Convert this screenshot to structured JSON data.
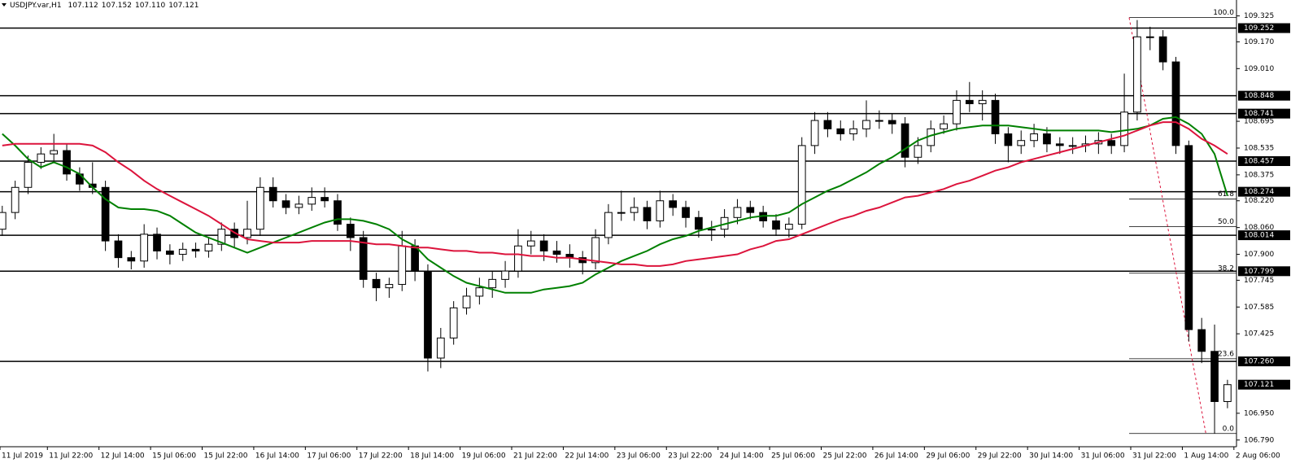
{
  "chart_data": {
    "type": "candlestick",
    "symbol": "USDJPY.var,H1",
    "header_ohlc": [
      107.112,
      107.152,
      {
        "value": 107.11,
        "label": "107.110"
      },
      107.121
    ],
    "x": [
      2,
      6,
      10,
      14,
      18,
      22,
      26,
      30,
      34,
      38,
      42,
      46,
      50,
      54,
      58,
      62,
      66,
      70,
      74,
      78,
      82,
      86,
      90,
      94,
      98,
      102,
      106,
      110,
      114,
      118,
      122,
      126,
      130,
      134,
      138,
      142,
      146,
      150,
      154,
      158,
      162,
      166,
      170,
      174,
      178,
      182,
      186,
      190,
      194,
      198,
      202,
      206,
      210,
      214,
      218,
      222,
      226,
      230,
      234,
      238,
      242,
      246,
      250,
      254,
      258,
      262,
      266,
      270,
      274,
      278,
      282,
      286,
      290,
      294,
      298,
      302,
      306,
      310,
      314,
      318,
      322,
      326,
      330,
      334,
      338,
      342,
      346,
      350,
      354,
      358,
      362,
      366,
      370,
      374,
      378,
      382
    ],
    "open": [
      108.05,
      108.15,
      108.3,
      108.45,
      108.5,
      108.52,
      108.38,
      108.32,
      108.3,
      107.98,
      107.88,
      107.86,
      108.02,
      107.92,
      107.9,
      107.93,
      107.92,
      107.96,
      108.05,
      108.0,
      108.05,
      108.3,
      108.22,
      108.18,
      108.2,
      108.24,
      108.22,
      108.08,
      108.0,
      107.75,
      107.7,
      107.72,
      107.95,
      107.8,
      107.28,
      107.4,
      107.58,
      107.65,
      107.7,
      107.75,
      107.8,
      107.95,
      107.98,
      107.92,
      107.9,
      107.88,
      107.85,
      108.0,
      108.15,
      108.15,
      108.18,
      108.1,
      108.22,
      108.18,
      108.12,
      108.05,
      108.05,
      108.12,
      108.18,
      108.15,
      108.1,
      108.05,
      108.08,
      108.55,
      108.7,
      108.65,
      108.62,
      108.65,
      108.7,
      108.7,
      108.68,
      108.48,
      108.55,
      108.65,
      108.68,
      108.82,
      108.8,
      108.82,
      108.62,
      108.55,
      108.58,
      108.62,
      108.56,
      108.55,
      108.55,
      108.56,
      108.58,
      108.55,
      108.75,
      109.2,
      109.2,
      109.05,
      108.55,
      107.45,
      107.32,
      107.02
    ],
    "high": [
      108.19,
      108.34,
      108.49,
      108.54,
      108.62,
      108.56,
      108.42,
      108.45,
      108.34,
      108.02,
      107.92,
      108.08,
      108.06,
      107.96,
      107.97,
      107.97,
      108.0,
      108.09,
      108.09,
      108.22,
      108.36,
      108.36,
      108.26,
      108.25,
      108.3,
      108.3,
      108.26,
      108.12,
      108.04,
      107.79,
      107.76,
      108.04,
      107.99,
      107.84,
      107.46,
      107.62,
      107.7,
      107.76,
      107.8,
      107.86,
      108.05,
      108.04,
      108.02,
      107.98,
      107.96,
      107.92,
      108.05,
      108.2,
      108.28,
      108.24,
      108.22,
      108.28,
      108.26,
      108.22,
      108.16,
      108.1,
      108.17,
      108.23,
      108.22,
      108.19,
      108.14,
      108.12,
      108.6,
      108.75,
      108.75,
      108.7,
      108.7,
      108.82,
      108.76,
      108.74,
      108.72,
      108.6,
      108.7,
      108.73,
      108.88,
      108.93,
      108.88,
      108.86,
      108.66,
      108.64,
      108.68,
      108.66,
      108.6,
      108.6,
      108.61,
      108.63,
      108.62,
      108.98,
      109.3,
      109.26,
      109.24,
      109.08,
      108.58,
      107.52,
      107.48,
      107.15
    ],
    "low": [
      108.01,
      108.11,
      108.26,
      108.41,
      108.46,
      108.34,
      108.28,
      108.26,
      107.92,
      107.82,
      107.81,
      107.82,
      107.87,
      107.84,
      107.86,
      107.88,
      107.88,
      107.92,
      107.94,
      107.96,
      108.01,
      108.18,
      108.14,
      108.14,
      108.16,
      108.18,
      108.04,
      107.92,
      107.7,
      107.62,
      107.64,
      107.68,
      107.74,
      107.2,
      107.22,
      107.36,
      107.54,
      107.6,
      107.64,
      107.7,
      107.76,
      107.9,
      107.86,
      107.85,
      107.82,
      107.78,
      107.81,
      107.96,
      108.1,
      108.1,
      108.05,
      108.06,
      108.13,
      108.06,
      108.0,
      107.98,
      108.0,
      108.08,
      108.11,
      108.06,
      108.01,
      108.0,
      108.05,
      108.5,
      108.6,
      108.58,
      108.58,
      108.6,
      108.65,
      108.62,
      108.42,
      108.44,
      108.51,
      108.62,
      108.64,
      108.75,
      108.7,
      108.56,
      108.45,
      108.5,
      108.54,
      108.51,
      108.5,
      108.5,
      108.51,
      108.5,
      108.5,
      108.51,
      108.7,
      109.12,
      109.0,
      108.5,
      107.38,
      107.25,
      106.83,
      106.98
    ],
    "close": [
      108.15,
      108.3,
      108.45,
      108.5,
      108.52,
      108.38,
      108.32,
      108.3,
      107.98,
      107.88,
      107.86,
      108.02,
      107.92,
      107.9,
      107.93,
      107.92,
      107.96,
      108.05,
      108.0,
      108.05,
      108.3,
      108.22,
      108.18,
      108.2,
      108.24,
      108.22,
      108.08,
      108.0,
      107.75,
      107.7,
      107.72,
      107.95,
      107.8,
      107.28,
      107.4,
      107.58,
      107.65,
      107.7,
      107.75,
      107.8,
      107.95,
      107.98,
      107.92,
      107.9,
      107.88,
      107.85,
      108.0,
      108.15,
      108.15,
      108.18,
      108.1,
      108.22,
      108.18,
      108.12,
      108.05,
      108.05,
      108.12,
      108.18,
      108.15,
      108.1,
      108.05,
      108.08,
      108.55,
      108.7,
      108.65,
      108.62,
      108.65,
      108.7,
      108.7,
      108.68,
      108.48,
      108.55,
      108.65,
      108.68,
      108.82,
      108.8,
      108.82,
      108.62,
      108.55,
      108.58,
      108.62,
      108.56,
      108.55,
      108.55,
      108.56,
      108.58,
      108.55,
      108.75,
      109.2,
      109.2,
      109.05,
      108.55,
      107.45,
      107.32,
      107.02,
      107.121
    ],
    "candle_colors": {
      "up": "#ffffff",
      "down": "#000000",
      "outline": "#000000"
    },
    "moving_averages": [
      {
        "color": "#008000",
        "values": [
          108.62,
          108.55,
          108.47,
          108.42,
          108.45,
          108.42,
          108.38,
          108.3,
          108.23,
          108.18,
          108.17,
          108.17,
          108.16,
          108.13,
          108.08,
          108.03,
          108.0,
          107.97,
          107.94,
          107.91,
          107.94,
          107.97,
          108.0,
          108.03,
          108.06,
          108.09,
          108.11,
          108.11,
          108.1,
          108.08,
          108.05,
          107.99,
          107.95,
          107.87,
          107.82,
          107.77,
          107.73,
          107.71,
          107.69,
          107.67,
          107.67,
          107.67,
          107.69,
          107.7,
          107.71,
          107.73,
          107.78,
          107.82,
          107.86,
          107.89,
          107.92,
          107.96,
          107.99,
          108.01,
          108.04,
          108.06,
          108.08,
          108.1,
          108.12,
          108.13,
          108.13,
          108.15,
          108.2,
          108.24,
          108.28,
          108.31,
          108.35,
          108.39,
          108.44,
          108.48,
          108.53,
          108.58,
          108.61,
          108.63,
          108.65,
          108.66,
          108.67,
          108.67,
          108.67,
          108.66,
          108.65,
          108.64,
          108.64,
          108.64,
          108.64,
          108.64,
          108.63,
          108.64,
          108.65,
          108.67,
          108.71,
          108.72,
          108.68,
          108.62,
          108.5,
          108.25
        ]
      },
      {
        "color": "#dc143c",
        "values": [
          108.55,
          108.56,
          108.56,
          108.56,
          108.56,
          108.56,
          108.56,
          108.55,
          108.51,
          108.45,
          108.4,
          108.34,
          108.29,
          108.25,
          108.21,
          108.17,
          108.13,
          108.08,
          108.03,
          107.99,
          107.98,
          107.97,
          107.97,
          107.97,
          107.98,
          107.98,
          107.98,
          107.98,
          107.97,
          107.96,
          107.96,
          107.95,
          107.94,
          107.94,
          107.93,
          107.92,
          107.92,
          107.91,
          107.91,
          107.9,
          107.9,
          107.89,
          107.89,
          107.88,
          107.88,
          107.87,
          107.86,
          107.85,
          107.84,
          107.84,
          107.83,
          107.83,
          107.84,
          107.86,
          107.87,
          107.88,
          107.89,
          107.9,
          107.93,
          107.95,
          107.98,
          107.99,
          108.02,
          108.05,
          108.08,
          108.11,
          108.13,
          108.16,
          108.18,
          108.21,
          108.24,
          108.25,
          108.27,
          108.29,
          108.32,
          108.34,
          108.37,
          108.4,
          108.42,
          108.45,
          108.47,
          108.49,
          108.51,
          108.53,
          108.55,
          108.57,
          108.59,
          108.61,
          108.64,
          108.67,
          108.69,
          108.69,
          108.65,
          108.59,
          108.55,
          108.5
        ]
      }
    ],
    "levels": [
      109.252,
      108.848,
      108.741,
      108.457,
      108.274,
      108.014,
      107.799,
      {
        "value": 107.26,
        "label": "107.260"
      }
    ],
    "current_price": 107.121,
    "fib": {
      "color": "#dc143c",
      "anchor_x": [
        351.5,
        375.3
      ],
      "anchor_y": [
        109.315,
        106.829
      ],
      "levels": [
        {
          "label": "100.0",
          "price": 109.315
        },
        {
          "label": "61.8",
          "price": 108.23
        },
        {
          "label": "50.0",
          "price": 108.065
        },
        {
          "label": "38.2",
          "price": 107.787
        },
        {
          "label": "23.6",
          "price": 107.276
        },
        {
          "label": "0.0",
          "price": 106.829
        }
      ]
    },
    "xlim": [
      1.3,
      384.8
    ],
    "ylim": [
      106.75,
      109.42
    ],
    "xticks": [
      {
        "value": 1.3,
        "label": "11 Jul 2019"
      },
      {
        "value": 16,
        "label": "11 Jul 22:00"
      },
      {
        "value": 32,
        "label": "12 Jul 14:00"
      },
      {
        "value": 48,
        "label": "15 Jul 06:00"
      },
      {
        "value": 64,
        "label": "15 Jul 22:00"
      },
      {
        "value": 80,
        "label": "16 Jul 14:00"
      },
      {
        "value": 96,
        "label": "17 Jul 06:00"
      },
      {
        "value": 112,
        "label": "17 Jul 22:00"
      },
      {
        "value": 128,
        "label": "18 Jul 14:00"
      },
      {
        "value": 144,
        "label": "19 Jul 06:00"
      },
      {
        "value": 160,
        "label": "21 Jul 22:00"
      },
      {
        "value": 176,
        "label": "22 Jul 14:00"
      },
      {
        "value": 192,
        "label": "23 Jul 06:00"
      },
      {
        "value": 208,
        "label": "23 Jul 22:00"
      },
      {
        "value": 224,
        "label": "24 Jul 14:00"
      },
      {
        "value": 240,
        "label": "25 Jul 06:00"
      },
      {
        "value": 256,
        "label": "25 Jul 22:00"
      },
      {
        "value": 272,
        "label": "26 Jul 14:00"
      },
      {
        "value": 288,
        "label": "29 Jul 06:00"
      },
      {
        "value": 304,
        "label": "29 Jul 22:00"
      },
      {
        "value": 320,
        "label": "30 Jul 14:00"
      },
      {
        "value": 336,
        "label": "31 Jul 06:00"
      },
      {
        "value": 352,
        "label": "31 Jul 22:00"
      },
      {
        "value": 368,
        "label": "1 Aug 14:00"
      },
      {
        "value": 384,
        "label": "2 Aug 06:00"
      }
    ],
    "yticks": [
      109.325,
      {
        "value": 109.17,
        "label": "109.170"
      },
      {
        "value": 109.01,
        "label": "109.010"
      },
      108.695,
      108.535,
      108.375,
      {
        "value": 108.22,
        "label": "108.220"
      },
      {
        "value": 108.06,
        "label": "108.060"
      },
      {
        "value": 107.9,
        "label": "107.900"
      },
      107.745,
      107.585,
      107.425,
      {
        "value": 106.95,
        "label": "106.950"
      },
      {
        "value": 106.79,
        "label": "106.790"
      }
    ]
  }
}
